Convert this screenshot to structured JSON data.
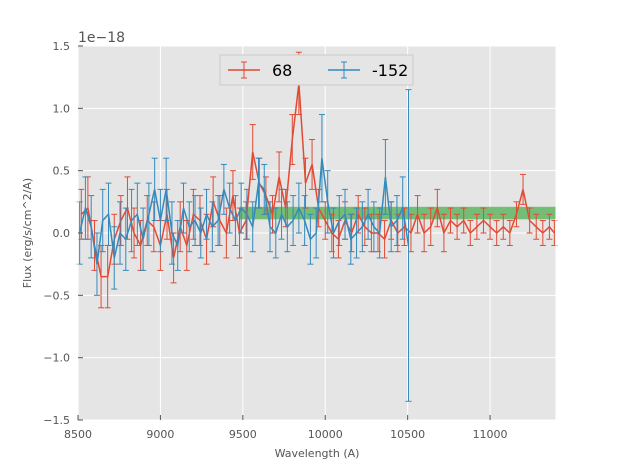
{
  "chart_data": {
    "type": "line",
    "title": "",
    "xlabel": "Wavelength (A)",
    "ylabel": "Flux (erg/s/cm^2/A)",
    "y_offset_label": "1e−18",
    "xlim": [
      8500,
      11400
    ],
    "ylim": [
      -1.5,
      1.5
    ],
    "x_ticks": [
      8500,
      9000,
      9500,
      10000,
      10500,
      11000
    ],
    "x_tick_labels": [
      "8500",
      "9000",
      "9500",
      "10000",
      "10500",
      "11000"
    ],
    "y_ticks": [
      -1.5,
      -1.0,
      -0.5,
      0.0,
      0.5,
      1.0,
      1.5
    ],
    "y_tick_labels": [
      "−1.5",
      "−1.0",
      "−0.5",
      "0.0",
      "0.5",
      "1.0",
      "1.5"
    ],
    "grid": true,
    "legend_position": "top-center",
    "band": {
      "x": [
        9480,
        11400
      ],
      "y": [
        0.11,
        0.21
      ],
      "color": "#4caf50"
    },
    "colors": {
      "background": "#e5e5e5",
      "grid": "#ffffff",
      "series_1": "#e24a33",
      "series_2": "#348abd"
    },
    "series": [
      {
        "name": "68",
        "color": "#e24a33",
        "x": [
          8520,
          8560,
          8600,
          8640,
          8680,
          8720,
          8760,
          8800,
          8840,
          8880,
          8920,
          8960,
          9000,
          9040,
          9080,
          9120,
          9160,
          9200,
          9240,
          9280,
          9320,
          9360,
          9400,
          9440,
          9480,
          9520,
          9560,
          9600,
          9640,
          9680,
          9720,
          9760,
          9800,
          9840,
          9880,
          9920,
          9960,
          10000,
          10040,
          10080,
          10120,
          10160,
          10200,
          10240,
          10280,
          10320,
          10360,
          10400,
          10440,
          10480,
          10520,
          10560,
          10600,
          10640,
          10680,
          10720,
          10760,
          10800,
          10840,
          10880,
          10920,
          10960,
          11000,
          11040,
          11080,
          11120,
          11160,
          11200,
          11240,
          11280,
          11320,
          11360,
          11390
        ],
        "y": [
          0.15,
          0.2,
          -0.1,
          -0.35,
          -0.35,
          -0.05,
          0.1,
          0.2,
          0.0,
          -0.1,
          0.1,
          0.05,
          -0.1,
          0.15,
          -0.2,
          0.05,
          -0.1,
          0.15,
          0.1,
          -0.05,
          0.25,
          0.1,
          0.0,
          0.3,
          0.0,
          0.1,
          0.65,
          0.4,
          0.3,
          0.15,
          0.45,
          0.2,
          0.75,
          1.2,
          0.4,
          0.55,
          0.2,
          0.1,
          0.0,
          -0.05,
          0.1,
          0.0,
          0.15,
          0.05,
          0.0,
          0.0,
          -0.05,
          0.1,
          0.0,
          0.05,
          0.0,
          0.15,
          0.0,
          0.05,
          0.2,
          0.0,
          0.1,
          0.05,
          0.1,
          0.0,
          0.05,
          0.1,
          0.05,
          0.0,
          0.05,
          0.0,
          0.15,
          0.35,
          0.1,
          0.05,
          0.0,
          0.05,
          0.0
        ],
        "err": [
          0.2,
          0.25,
          0.2,
          0.25,
          0.25,
          0.2,
          0.2,
          0.25,
          0.2,
          0.2,
          0.2,
          0.2,
          0.2,
          0.2,
          0.2,
          0.2,
          0.2,
          0.2,
          0.2,
          0.2,
          0.2,
          0.2,
          0.2,
          0.2,
          0.2,
          0.15,
          0.22,
          0.2,
          0.15,
          0.15,
          0.2,
          0.15,
          0.2,
          0.25,
          0.2,
          0.2,
          0.15,
          0.15,
          0.15,
          0.15,
          0.15,
          0.15,
          0.15,
          0.15,
          0.15,
          0.15,
          0.15,
          0.15,
          0.15,
          0.15,
          0.15,
          0.15,
          0.15,
          0.15,
          0.15,
          0.15,
          0.1,
          0.1,
          0.1,
          0.1,
          0.1,
          0.1,
          0.1,
          0.1,
          0.1,
          0.1,
          0.1,
          0.12,
          0.1,
          0.1,
          0.1,
          0.1,
          0.1
        ]
      },
      {
        "name": "-152",
        "color": "#348abd",
        "x": [
          8510,
          8545,
          8580,
          8615,
          8650,
          8685,
          8720,
          8755,
          8790,
          8825,
          8860,
          8895,
          8930,
          8965,
          9000,
          9035,
          9070,
          9105,
          9140,
          9175,
          9210,
          9245,
          9280,
          9315,
          9350,
          9385,
          9420,
          9455,
          9490,
          9525,
          9560,
          9595,
          9630,
          9665,
          9700,
          9735,
          9770,
          9805,
          9840,
          9875,
          9910,
          9945,
          9980,
          10015,
          10050,
          10085,
          10120,
          10155,
          10190,
          10225,
          10260,
          10295,
          10330,
          10365,
          10400,
          10435,
          10470,
          10505
        ],
        "y": [
          0.0,
          0.2,
          0.05,
          -0.25,
          0.1,
          0.15,
          -0.2,
          0.0,
          -0.05,
          0.1,
          0.15,
          -0.05,
          0.15,
          0.35,
          0.1,
          0.35,
          0.0,
          -0.1,
          0.2,
          0.05,
          0.1,
          0.0,
          0.15,
          0.05,
          0.1,
          0.35,
          0.2,
          0.1,
          0.2,
          0.15,
          0.05,
          0.4,
          0.35,
          0.05,
          0.0,
          0.15,
          0.05,
          0.1,
          0.2,
          0.1,
          -0.05,
          0.0,
          0.6,
          0.25,
          0.0,
          0.1,
          0.15,
          -0.05,
          0.0,
          0.05,
          0.15,
          0.05,
          0.0,
          0.45,
          0.05,
          0.1,
          0.2,
          -0.1
        ],
        "err": [
          0.25,
          0.25,
          0.25,
          0.25,
          0.25,
          0.25,
          0.25,
          0.25,
          0.25,
          0.25,
          0.25,
          0.25,
          0.25,
          0.25,
          0.25,
          0.25,
          0.25,
          0.2,
          0.2,
          0.2,
          0.2,
          0.2,
          0.2,
          0.2,
          0.2,
          0.2,
          0.2,
          0.2,
          0.2,
          0.2,
          0.2,
          0.2,
          0.2,
          0.2,
          0.2,
          0.2,
          0.2,
          0.2,
          0.2,
          0.2,
          0.2,
          0.2,
          0.35,
          0.25,
          0.2,
          0.2,
          0.2,
          0.2,
          0.2,
          0.2,
          0.2,
          0.2,
          0.2,
          0.3,
          0.2,
          0.2,
          0.25,
          1.25
        ]
      }
    ]
  }
}
